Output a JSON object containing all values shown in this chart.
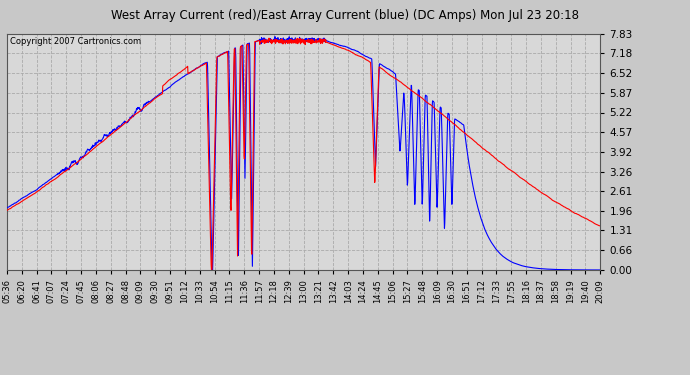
{
  "title": "West Array Current (red)/East Array Current (blue) (DC Amps) Mon Jul 23 20:18",
  "copyright": "Copyright 2007 Cartronics.com",
  "bg_color": "#c8c8c8",
  "plot_bg_color": "#d8d8d8",
  "grid_color": "#aaaaaa",
  "title_color": "#000000",
  "copyright_color": "#000000",
  "tick_label_color": "#000000",
  "yticks": [
    0.0,
    0.66,
    1.31,
    1.96,
    2.61,
    3.26,
    3.92,
    4.57,
    5.22,
    5.87,
    6.52,
    7.18,
    7.83
  ],
  "ylim": [
    0.0,
    7.83
  ],
  "xtick_labels": [
    "05:36",
    "06:20",
    "06:41",
    "07:07",
    "07:24",
    "07:45",
    "08:06",
    "08:27",
    "08:48",
    "09:09",
    "09:30",
    "09:51",
    "10:12",
    "10:33",
    "10:54",
    "11:15",
    "11:36",
    "11:57",
    "12:18",
    "12:39",
    "13:00",
    "13:21",
    "13:42",
    "14:03",
    "14:24",
    "14:45",
    "15:06",
    "15:27",
    "15:48",
    "16:09",
    "16:30",
    "16:51",
    "17:12",
    "17:33",
    "17:55",
    "18:16",
    "18:37",
    "18:58",
    "19:19",
    "19:40",
    "20:09"
  ],
  "line_width": 1.0,
  "figsize": [
    6.9,
    3.75
  ],
  "dpi": 100
}
